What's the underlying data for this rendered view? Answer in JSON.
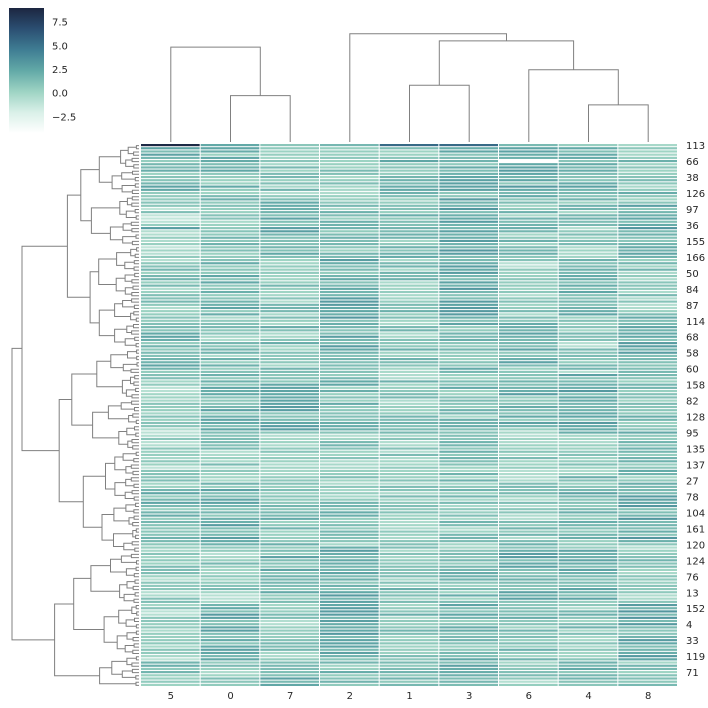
{
  "chart_data": {
    "type": "heatmap",
    "title": "",
    "xlabel": "",
    "ylabel": "",
    "grid": false,
    "colormap": [
      "#ffffff",
      "#d9f0e8",
      "#9dd3c3",
      "#62a9a7",
      "#3f7d93",
      "#2b4f72",
      "#1c2641"
    ],
    "colorbar": {
      "ticks": [
        "7.5",
        "5.0",
        "2.5",
        "0.0",
        "−2.5"
      ],
      "tick_values": [
        7.5,
        5.0,
        2.5,
        0.0,
        -2.5
      ],
      "range": [
        -4.2,
        9.0
      ]
    },
    "columns": [
      "5",
      "0",
      "7",
      "2",
      "1",
      "3",
      "6",
      "4",
      "8"
    ],
    "row_labels": [
      "113",
      "66",
      "38",
      "126",
      "97",
      "36",
      "155",
      "166",
      "50",
      "84",
      "87",
      "114",
      "68",
      "58",
      "60",
      "158",
      "82",
      "128",
      "95",
      "135",
      "137",
      "27",
      "78",
      "104",
      "161",
      "120",
      "124",
      "76",
      "13",
      "152",
      "4",
      "33",
      "119",
      "71"
    ],
    "n_rows": 170,
    "column_dendrogram": [
      {
        "a": 1,
        "b": 2,
        "h": 0.45
      },
      {
        "a": 0,
        "b": "1.5",
        "h": 0.92
      },
      {
        "a": 4,
        "b": 5,
        "h": 0.55
      },
      {
        "a": 7,
        "b": 8,
        "h": 0.36
      },
      {
        "a": 6,
        "b": "7.5",
        "h": 0.7
      },
      {
        "a": "4.5",
        "b": "6.75",
        "h": 0.98
      },
      {
        "a": 3,
        "b": "5.625",
        "h": 1.05
      },
      {
        "a": "1.25",
        "b": "4.3125",
        "h": 1.26
      }
    ],
    "seed": 7
  }
}
